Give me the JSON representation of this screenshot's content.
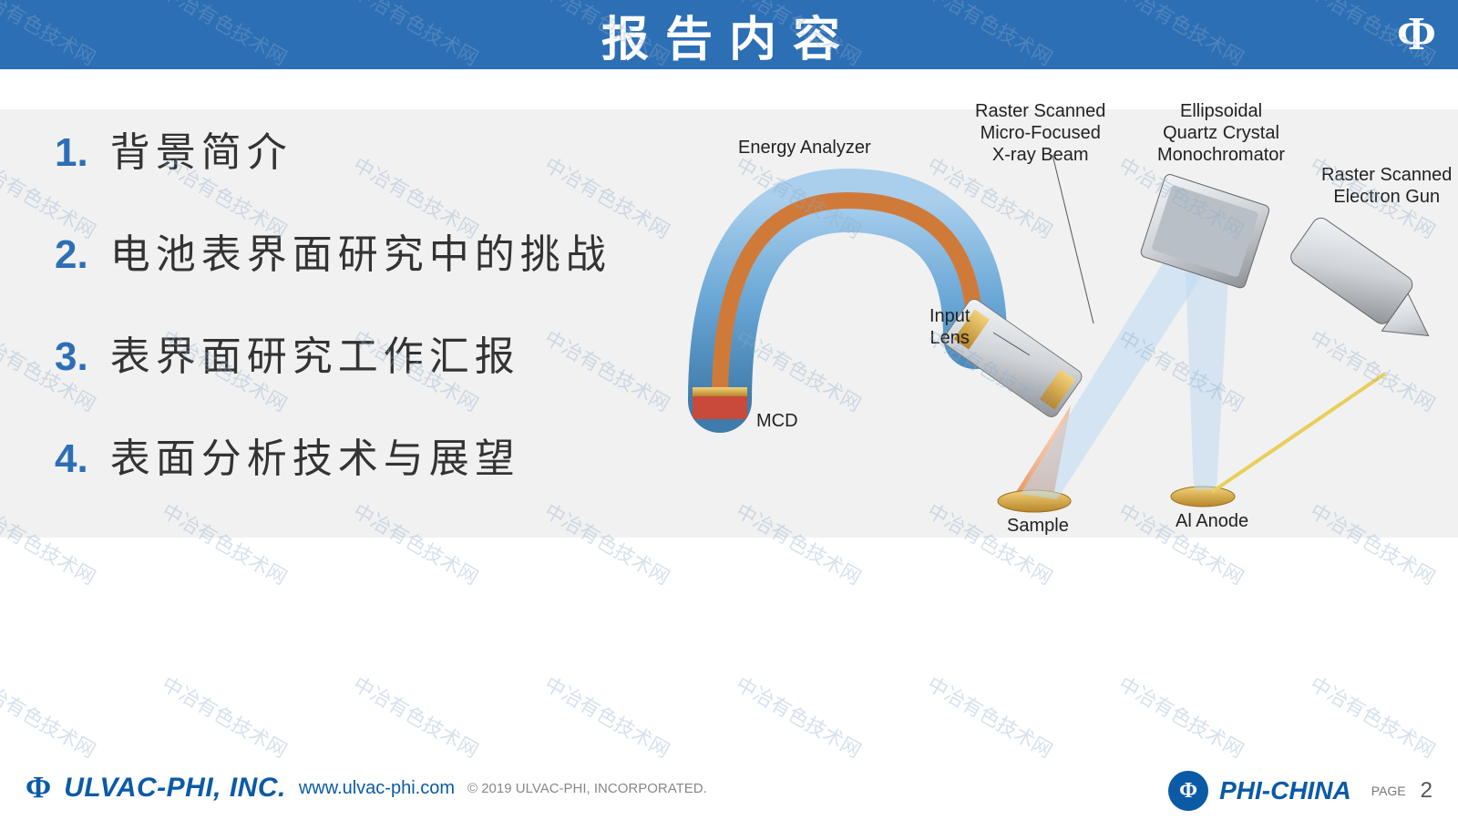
{
  "colors": {
    "header_bg": "#2d6fb5",
    "header_text": "#ffffff",
    "content_bg": "#f1f1f1",
    "list_number": "#2d6fb5",
    "list_text": "#333333",
    "accent_blue": "#0a5aa6",
    "watermark": "rgba(140,170,200,0.35)",
    "diagram_tube_outer": "#6aa7d6",
    "diagram_tube_inner": "#d07a3a",
    "diagram_metal_light": "#e7e9ec",
    "diagram_metal_dark": "#8f9398",
    "diagram_gold": "#d9a93a",
    "diagram_red": "#c94a3a",
    "diagram_cone": "#f4b28f",
    "diagram_ray_blue": "#bcd8f2",
    "diagram_ray_yellow": "#e8cf5a"
  },
  "header": {
    "title": "报告内容",
    "logo_symbol": "Φ"
  },
  "list": {
    "items": [
      {
        "num": "1",
        "text": "背景简介"
      },
      {
        "num": "2",
        "text": "电池表界面研究中的挑战"
      },
      {
        "num": "3",
        "text": "表界面研究工作汇报"
      },
      {
        "num": "4",
        "text": "表面分析技术与展望"
      }
    ]
  },
  "diagram": {
    "labels": {
      "energy_analyzer": "Energy Analyzer",
      "xray_beam": "Raster Scanned\nMicro-Focused\nX-ray Beam",
      "monochromator": "Ellipsoidal\nQuartz Crystal\nMonochromator",
      "electron_gun": "Raster Scanned\nElectron Gun",
      "input_lens": "Input\nLens",
      "mcd": "MCD",
      "sample": "Sample",
      "al_anode": "Al Anode"
    }
  },
  "footer": {
    "phi_symbol": "Φ",
    "company": "ULVAC-PHI, INC.",
    "url": "www.ulvac-phi.com",
    "copyright": "© 2019 ULVAC-PHI, INCORPORATED.",
    "phi_china": "PHI-CHINA",
    "page_label": "PAGE",
    "page_num": "2"
  },
  "watermark": {
    "text": "中冶有色技术网"
  }
}
